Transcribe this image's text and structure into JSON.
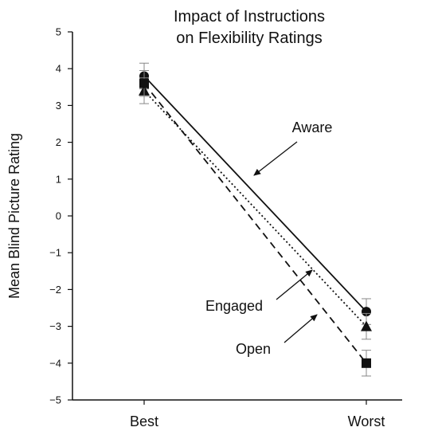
{
  "chart_data": {
    "type": "line",
    "title": [
      "Impact of Instructions",
      "on Flexibility Ratings"
    ],
    "xlabel": "",
    "ylabel": "Mean Blind  Picture Rating",
    "categories": [
      "Best",
      "Worst"
    ],
    "ylim": [
      -5,
      5
    ],
    "yticks": [
      5,
      4,
      3,
      2,
      1,
      0,
      -1,
      -2,
      -3,
      -4,
      -5
    ],
    "ytick_labels": [
      "5",
      "4",
      "3",
      "2",
      "1",
      "0",
      "−1",
      "−2",
      "−3",
      "−4",
      "−5"
    ],
    "grid": false,
    "legend": "none",
    "series": [
      {
        "name": "Aware",
        "values": [
          3.8,
          -2.6
        ],
        "marker": "circle",
        "line_style": "solid",
        "error": [
          0.35,
          0.35
        ]
      },
      {
        "name": "Engaged",
        "values": [
          3.4,
          -3.0
        ],
        "marker": "triangle",
        "line_style": "dotted",
        "error": [
          0.35,
          0.35
        ]
      },
      {
        "name": "Open",
        "values": [
          3.6,
          -4.0
        ],
        "marker": "square",
        "line_style": "dashed",
        "error": [
          0.35,
          0.35
        ]
      }
    ],
    "annotations": [
      {
        "text": "Aware",
        "series": "Aware"
      },
      {
        "text": "Engaged",
        "series": "Engaged"
      },
      {
        "text": "Open",
        "series": "Open"
      }
    ],
    "colors": {
      "ink": "#111111",
      "error_bar": "#888888"
    }
  }
}
